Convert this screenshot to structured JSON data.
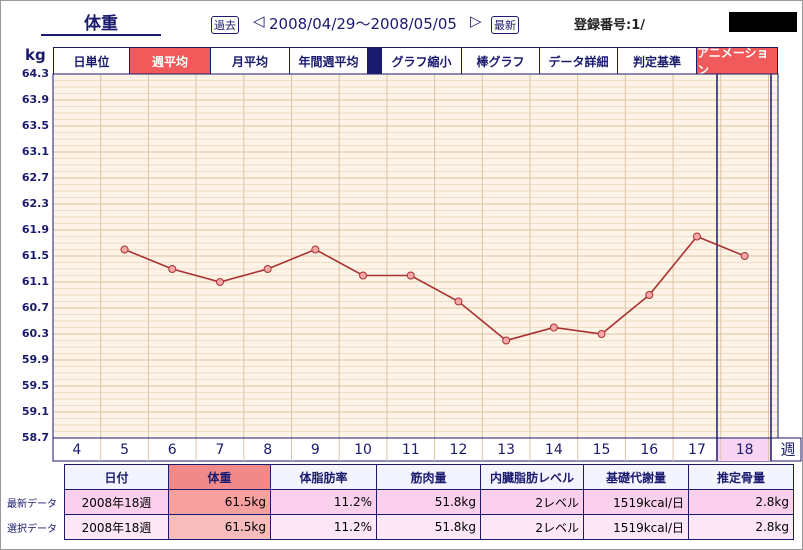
{
  "header": {
    "title": "体重",
    "nav_prev": "過去",
    "date_range": "2008/04/29〜2008/05/05",
    "nav_latest": "最新",
    "id_label": "登録番号:1/"
  },
  "tabs": [
    "日単位",
    "週平均",
    "月平均",
    "年間週平均",
    "グラフ縮小",
    "棒グラフ",
    "データ詳細",
    "判定基準",
    "アニメーション"
  ],
  "chart_data": {
    "type": "line",
    "ylabel": "kg",
    "xlabel": "週",
    "categories": [
      "4",
      "5",
      "6",
      "7",
      "8",
      "9",
      "10",
      "11",
      "12",
      "13",
      "14",
      "15",
      "16",
      "17",
      "18"
    ],
    "values": [
      null,
      61.6,
      61.3,
      61.1,
      61.3,
      61.6,
      61.2,
      61.2,
      60.8,
      60.2,
      60.4,
      60.3,
      60.9,
      61.8,
      61.5
    ],
    "color": "#a83232",
    "ylim": [
      58.7,
      64.3
    ],
    "yticks": [
      64.3,
      63.9,
      63.5,
      63.1,
      62.7,
      62.3,
      61.9,
      61.5,
      61.1,
      60.7,
      60.3,
      59.9,
      59.5,
      59.1,
      58.7
    ],
    "grid": true
  },
  "table": {
    "headers": [
      "日付",
      "体重",
      "体脂肪率",
      "筋肉量",
      "内臓脂肪レベル",
      "基礎代謝量",
      "推定骨量"
    ],
    "rows": [
      {
        "label": "最新データ",
        "cells": [
          "2008年18週",
          "61.5kg",
          "11.2%",
          "51.8kg",
          "2レベル",
          "1519kcal/日",
          "2.8kg"
        ]
      },
      {
        "label": "選択データ",
        "cells": [
          "2008年18週",
          "61.5kg",
          "11.2%",
          "51.8kg",
          "2レベル",
          "1519kcal/日",
          "2.8kg"
        ]
      }
    ]
  }
}
